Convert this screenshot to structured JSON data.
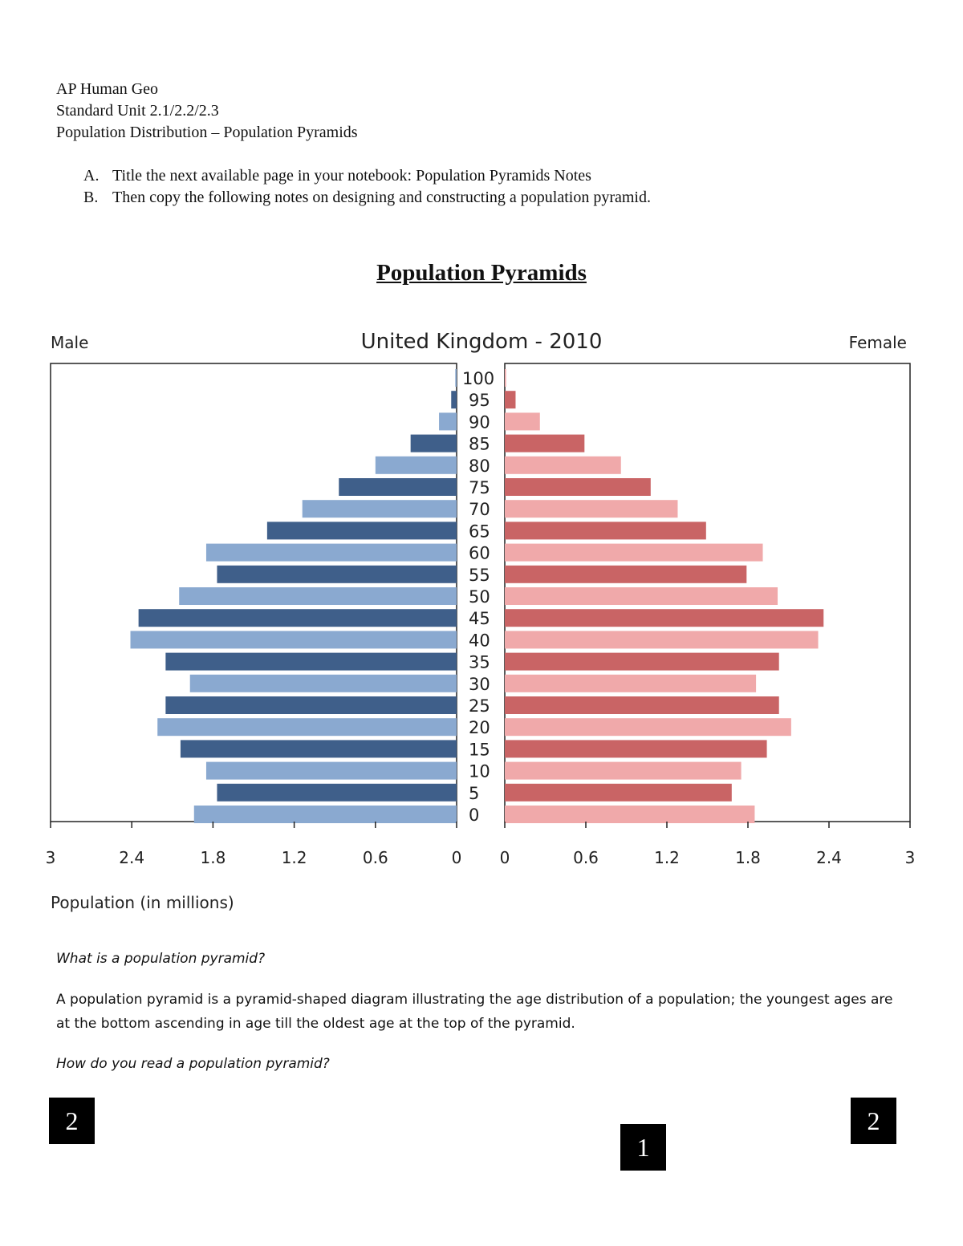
{
  "header": {
    "line1": "AP Human Geo",
    "line2": "Standard Unit 2.1/2.2/2.3",
    "line3": "Population Distribution – Population  Pyramids"
  },
  "instructions": [
    {
      "marker": "A.",
      "text": "Title the next available page in your notebook: Population Pyramids Notes"
    },
    {
      "marker": "B.",
      "text": "Then copy the following notes on designing and constructing a population pyramid."
    }
  ],
  "doc_title": "Population Pyramids",
  "chart_data": {
    "type": "bar",
    "orientation": "horizontal-pyramid",
    "title": "United Kingdom - 2010",
    "left_label": "Male",
    "right_label": "Female",
    "xlabel": "Population (in millions)",
    "xlim": [
      0,
      3
    ],
    "xticks": [
      "0",
      "0.6",
      "1.2",
      "1.8",
      "2.4",
      "3"
    ],
    "categories": [
      "100",
      "95",
      "90",
      "85",
      "80",
      "75",
      "70",
      "65",
      "60",
      "55",
      "50",
      "45",
      "40",
      "35",
      "30",
      "25",
      "20",
      "15",
      "10",
      "5",
      "0"
    ],
    "series": [
      {
        "name": "Male",
        "values": [
          0.01,
          0.04,
          0.13,
          0.34,
          0.6,
          0.87,
          1.14,
          1.4,
          1.85,
          1.77,
          2.05,
          2.35,
          2.41,
          2.15,
          1.97,
          2.15,
          2.21,
          2.04,
          1.85,
          1.77,
          1.94
        ],
        "colors": [
          "#8aa9d0",
          "#3f5f8a"
        ]
      },
      {
        "name": "Female",
        "values": [
          0.01,
          0.08,
          0.26,
          0.59,
          0.86,
          1.08,
          1.28,
          1.49,
          1.91,
          1.79,
          2.02,
          2.36,
          2.32,
          2.03,
          1.86,
          2.03,
          2.12,
          1.94,
          1.75,
          1.68,
          1.85
        ],
        "colors": [
          "#f0a9aa",
          "#c96465"
        ]
      }
    ],
    "grid": false
  },
  "notes": {
    "q1": "What is a population pyramid?",
    "a1": "A population pyramid is a pyramid-shaped diagram illustrating the age distribution of a population; the youngest ages are at the bottom ascending in age till the oldest age at the top of the pyramid.",
    "q2": "How do you read a population pyramid?"
  },
  "page_markers": [
    "2",
    "1",
    "2"
  ]
}
